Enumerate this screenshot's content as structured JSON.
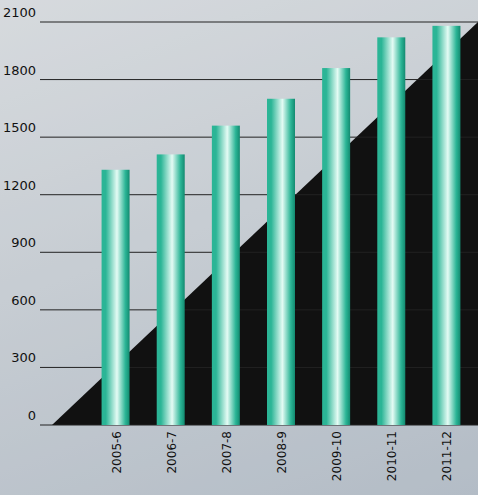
{
  "chart_data": {
    "type": "bar",
    "categories": [
      "2005-6",
      "2006-7",
      "2007-8",
      "2008-9",
      "2009-10",
      "2010-11",
      "2011-12"
    ],
    "values": [
      1330,
      1410,
      1560,
      1700,
      1860,
      2020,
      2080
    ],
    "color": "#2bb596",
    "ylim": [
      0,
      2100
    ],
    "yticks": [
      0,
      300,
      600,
      900,
      1200,
      1500,
      1800,
      2100
    ],
    "grid": true
  }
}
